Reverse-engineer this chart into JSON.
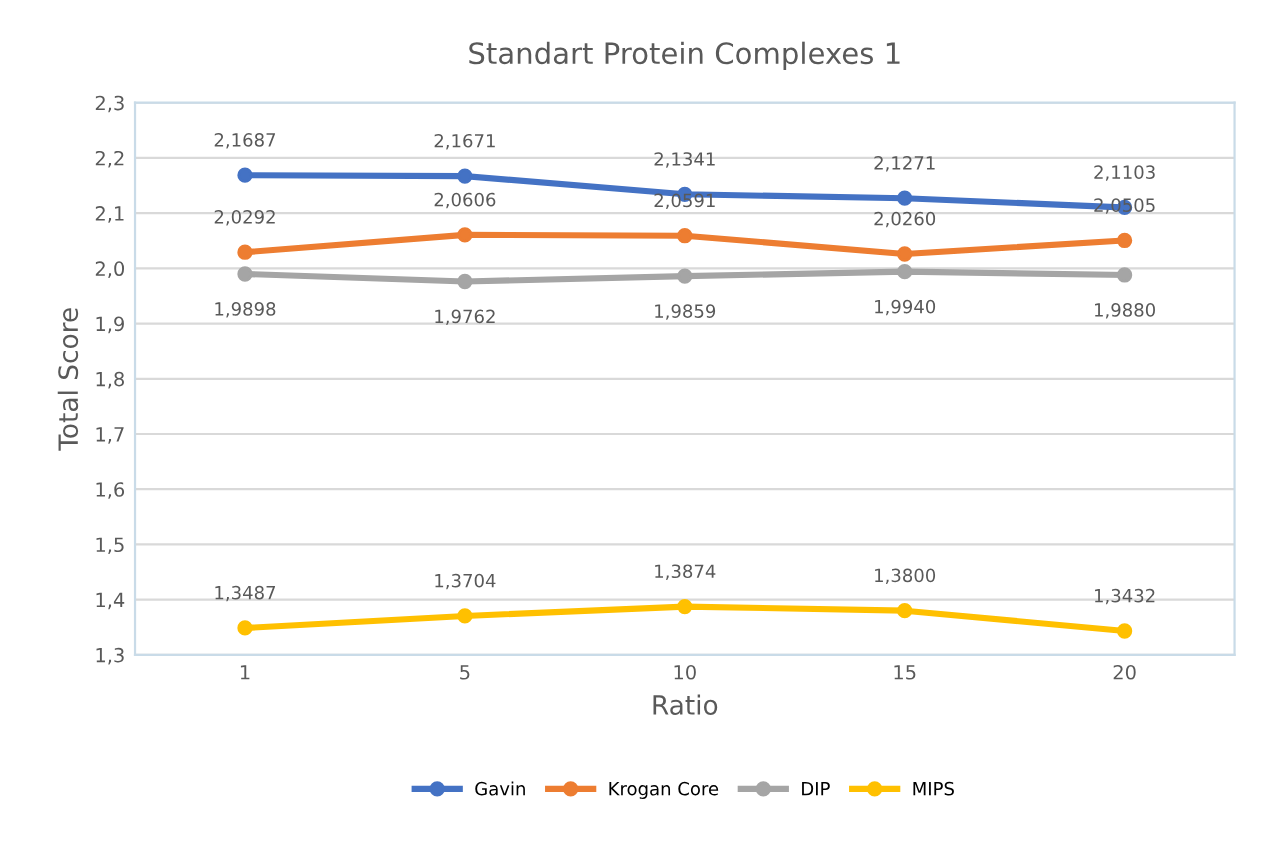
{
  "chart_data": {
    "type": "line",
    "title": "Standart Protein Complexes 1",
    "xlabel": "Ratio",
    "ylabel": "Total Score",
    "categories": [
      "1",
      "5",
      "10",
      "15",
      "20"
    ],
    "series": [
      {
        "name": "Gavin",
        "color": "#4472c4",
        "values": [
          2.1687,
          2.1671,
          2.1341,
          2.1271,
          2.1103
        ],
        "value_labels": [
          "2,1687",
          "2,1671",
          "2,1341",
          "2,1271",
          "2,1103"
        ]
      },
      {
        "name": "Krogan Core",
        "color": "#ed7d31",
        "values": [
          2.0292,
          2.0606,
          2.0591,
          2.026,
          2.0505
        ],
        "value_labels": [
          "2,0292",
          "2,0606",
          "2,0591",
          "2,0260",
          "2,0505"
        ]
      },
      {
        "name": "DIP",
        "color": "#a5a5a5",
        "values": [
          1.9898,
          1.9762,
          1.9859,
          1.994,
          1.988
        ],
        "value_labels": [
          "1,9898",
          "1,9762",
          "1,9859",
          "1,9940",
          "1,9880"
        ]
      },
      {
        "name": "MIPS",
        "color": "#ffc000",
        "values": [
          1.3487,
          1.3704,
          1.3874,
          1.38,
          1.3432
        ],
        "value_labels": [
          "1,3487",
          "1,3704",
          "1,3874",
          "1,3800",
          "1,3432"
        ]
      }
    ],
    "ylim": [
      1.3,
      2.3
    ],
    "yticks": [
      {
        "value": 1.3,
        "label": "1,3"
      },
      {
        "value": 1.4,
        "label": "1,4"
      },
      {
        "value": 1.5,
        "label": "1,5"
      },
      {
        "value": 1.6,
        "label": "1,6"
      },
      {
        "value": 1.7,
        "label": "1,7"
      },
      {
        "value": 1.8,
        "label": "1,8"
      },
      {
        "value": 1.9,
        "label": "1,9"
      },
      {
        "value": 2.0,
        "label": "2,0"
      },
      {
        "value": 2.1,
        "label": "2,1"
      },
      {
        "value": 2.2,
        "label": "2,2"
      },
      {
        "value": 2.3,
        "label": "2,3"
      }
    ],
    "grid": "y",
    "legend": "bottom",
    "marker": "circle",
    "line_style": "solid"
  }
}
